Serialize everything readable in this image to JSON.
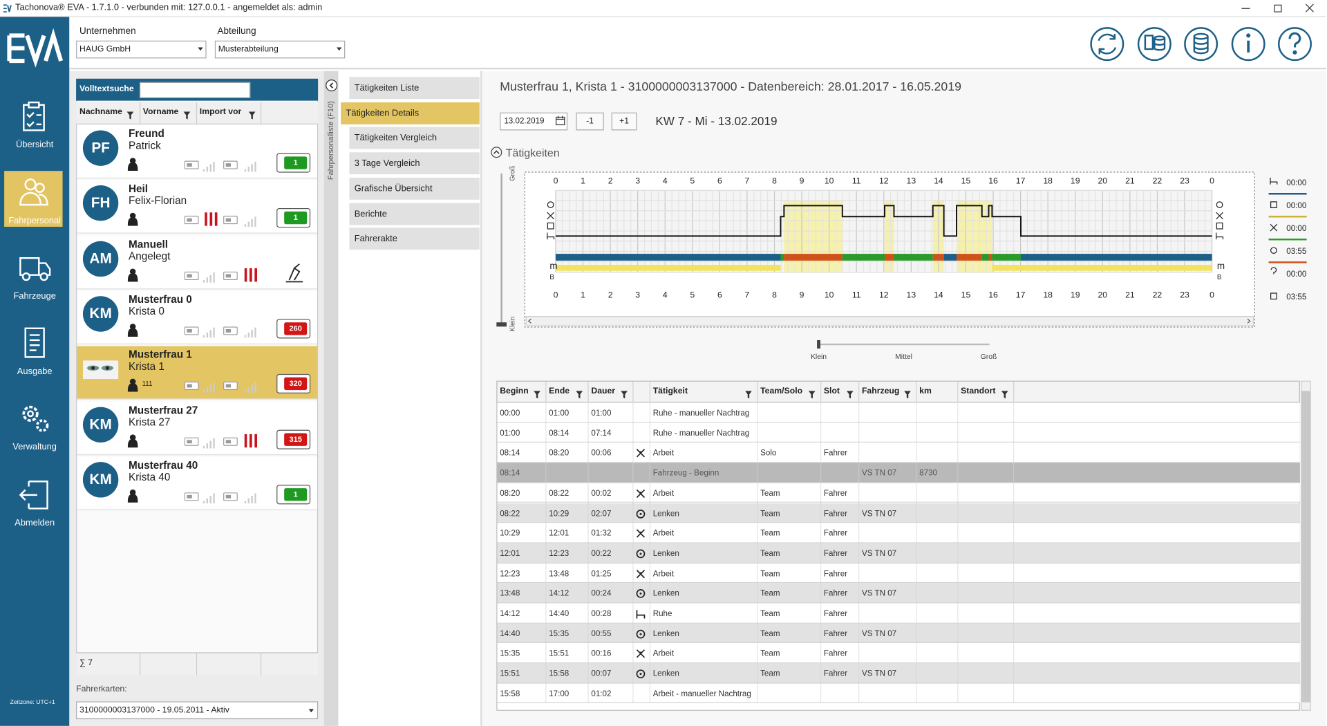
{
  "window": {
    "title": "Tachonova® EVA - 1.7.1.0 - verbunden mit: 127.0.0.1 - angemeldet als: admin"
  },
  "sidebar": {
    "nav": [
      "Übersicht",
      "Fahrpersonal",
      "Fahrzeuge",
      "Ausgabe",
      "Verwaltung",
      "Abmelden"
    ],
    "timezone": "Zeitzone: UTC+1"
  },
  "filters": {
    "company_label": "Unternehmen",
    "company": "HAUG GmbH",
    "department_label": "Abteilung",
    "department": "Musterabteilung"
  },
  "driver_list": {
    "side_tab": "Fahrpersonalliste (F10)",
    "search_label": "Volltextsuche",
    "columns": [
      "Nachname",
      "Vorname",
      "Import vor"
    ],
    "drivers": [
      {
        "initials": "PF",
        "last": "Freund",
        "first": "Patrick",
        "badge": 1
      },
      {
        "initials": "FH",
        "last": "Heil",
        "first": "Felix-Florian",
        "badge": 1
      },
      {
        "initials": "AM",
        "last": "Manuell",
        "first": "Angelegt"
      },
      {
        "initials": "KM",
        "last": "Musterfrau 0",
        "first": "Krista 0",
        "badge": 260
      },
      {
        "last": "Musterfrau 1",
        "first": "Krista 1",
        "note": "111",
        "badge": 320
      },
      {
        "initials": "KM",
        "last": "Musterfrau 27",
        "first": "Krista 27",
        "badge": 315
      },
      {
        "initials": "KM",
        "last": "Musterfrau 40",
        "first": "Krista 40",
        "badge": 1
      }
    ],
    "count": "∑ 7",
    "cards_label": "Fahrerkarten:",
    "card": "3100000003137000 - 19.05.2011 - Aktiv"
  },
  "submenu": [
    "Tätigkeiten Liste",
    "Tätigkeiten Details",
    "Tätigkeiten Vergleich",
    "3 Tage Vergleich",
    "Grafische Übersicht",
    "Berichte",
    "Fahrerakte"
  ],
  "detail": {
    "heading": "Musterfrau 1, Krista 1 - 3100000003137000 - Datenbereich: 28.01.2017 - 16.05.2019",
    "date": "13.02.2019",
    "prev": "-1",
    "next": "+1",
    "week": "KW 7 - Mi - 13.02.2019",
    "section": "Tätigkeiten",
    "zoom_top": "Groß",
    "zoom_bottom": "Klein",
    "hours": [
      0,
      1,
      2,
      3,
      4,
      5,
      6,
      7,
      8,
      9,
      10,
      11,
      12,
      13,
      14,
      15,
      16,
      17,
      18,
      19,
      20,
      21,
      22,
      23,
      0
    ],
    "row_labels": [
      "m",
      "B"
    ],
    "totals": [
      "00:00",
      "00:00",
      "00:00",
      "03:55",
      "00:00",
      "03:55"
    ],
    "scale_labels": [
      "Klein",
      "Mittel",
      "Groß"
    ]
  },
  "table": {
    "columns": [
      "Beginn",
      "Ende",
      "Dauer",
      "Tätigkeit",
      "Team/Solo",
      "Slot",
      "Fahrzeug",
      "km",
      "Standort"
    ],
    "rows": [
      [
        "00:00",
        "01:00",
        "01:00",
        "Ruhe - manueller Nachtrag",
        null,
        null,
        null,
        null,
        null
      ],
      [
        "01:00",
        "08:14",
        "07:14",
        "Ruhe - manueller Nachtrag",
        null,
        null,
        null,
        null,
        null
      ],
      [
        "08:14",
        "08:20",
        "00:06",
        "Arbeit",
        "Solo",
        "Fahrer",
        null,
        null,
        null
      ],
      [
        "08:14",
        null,
        null,
        "Fahrzeug - Beginn",
        null,
        null,
        "VS TN 07",
        "8730",
        null
      ],
      [
        "08:20",
        "08:22",
        "00:02",
        "Arbeit",
        "Team",
        "Fahrer",
        null,
        null,
        null
      ],
      [
        "08:22",
        "10:29",
        "02:07",
        "Lenken",
        "Team",
        "Fahrer",
        "VS TN 07",
        null,
        null
      ],
      [
        "10:29",
        "12:01",
        "01:32",
        "Arbeit",
        "Team",
        "Fahrer",
        null,
        null,
        null
      ],
      [
        "12:01",
        "12:23",
        "00:22",
        "Lenken",
        "Team",
        "Fahrer",
        "VS TN 07",
        null,
        null
      ],
      [
        "12:23",
        "13:48",
        "01:25",
        "Arbeit",
        "Team",
        "Fahrer",
        null,
        null,
        null
      ],
      [
        "13:48",
        "14:12",
        "00:24",
        "Lenken",
        "Team",
        "Fahrer",
        "VS TN 07",
        null,
        null
      ],
      [
        "14:12",
        "14:40",
        "00:28",
        "Ruhe",
        "Team",
        "Fahrer",
        null,
        null,
        null
      ],
      [
        "14:40",
        "15:35",
        "00:55",
        "Lenken",
        "Team",
        "Fahrer",
        "VS TN 07",
        null,
        null
      ],
      [
        "15:35",
        "15:51",
        "00:16",
        "Arbeit",
        "Team",
        "Fahrer",
        null,
        null,
        null
      ],
      [
        "15:51",
        "15:58",
        "00:07",
        "Lenken",
        "Team",
        "Fahrer",
        "VS TN 07",
        null,
        null
      ],
      [
        "15:58",
        "17:00",
        "01:02",
        "Arbeit - manueller Nachtrag",
        null,
        null,
        null,
        null,
        null
      ]
    ]
  }
}
